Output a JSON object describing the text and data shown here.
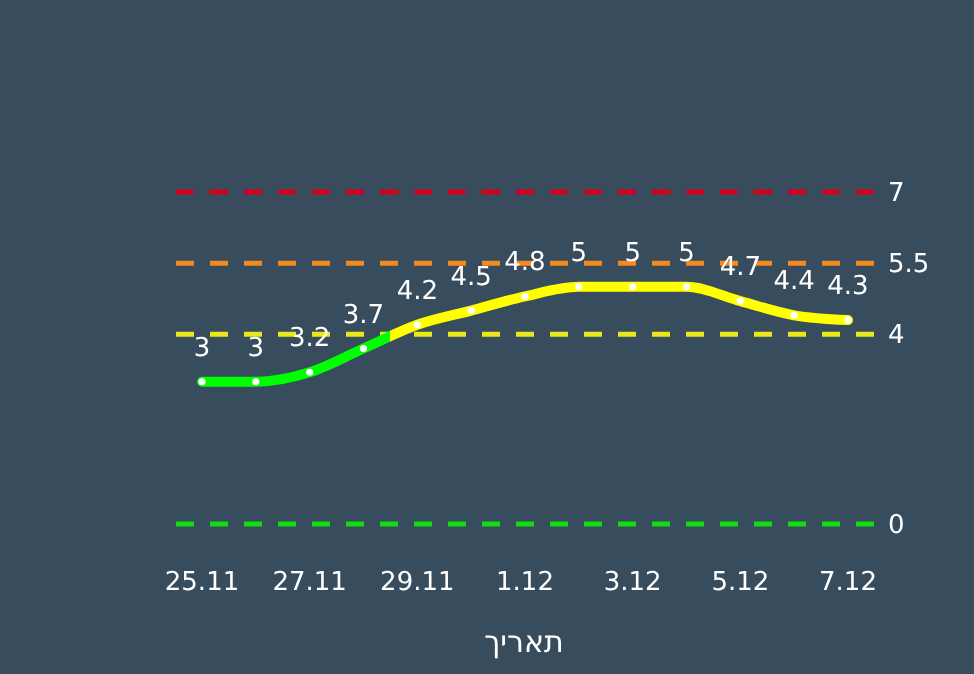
{
  "chart_data": {
    "type": "line",
    "xlabel": "תאריך",
    "categories": [
      "25.11",
      null,
      "27.11",
      null,
      "29.11",
      null,
      "1.12",
      null,
      "3.12",
      null,
      "5.12",
      null,
      "7.12"
    ],
    "series": [
      {
        "colors": [
          "#00ff00",
          "#00ff00",
          "#00ff00",
          "#00ff00",
          "#ffff00",
          "#ffff00",
          "#ffff00",
          "#ffff00",
          "#ffff00",
          "#ffff00",
          "#ffff00",
          "#ffff00",
          "#ffff00"
        ],
        "values": [
          3,
          3,
          3.2,
          3.7,
          4.2,
          4.5,
          4.8,
          5,
          5,
          5,
          4.7,
          4.4,
          4.3
        ]
      }
    ],
    "ylim": [
      0,
      7
    ],
    "tick_labels": "x",
    "data_labels": true,
    "marker": "circle",
    "line_style": "solid",
    "ref_lines": [
      {
        "axis": "y",
        "value": 7,
        "label": "7",
        "color": "#d0021b",
        "line_style": "dashed"
      },
      {
        "axis": "y",
        "value": 5.5,
        "label": "5.5",
        "color": "#f5881f",
        "line_style": "dashed"
      },
      {
        "axis": "y",
        "value": 4,
        "label": "4",
        "color": "#e8e81a",
        "line_style": "dashed"
      },
      {
        "axis": "y",
        "value": 0,
        "label": "0",
        "color": "#11dd11",
        "line_style": "dashed"
      }
    ]
  }
}
